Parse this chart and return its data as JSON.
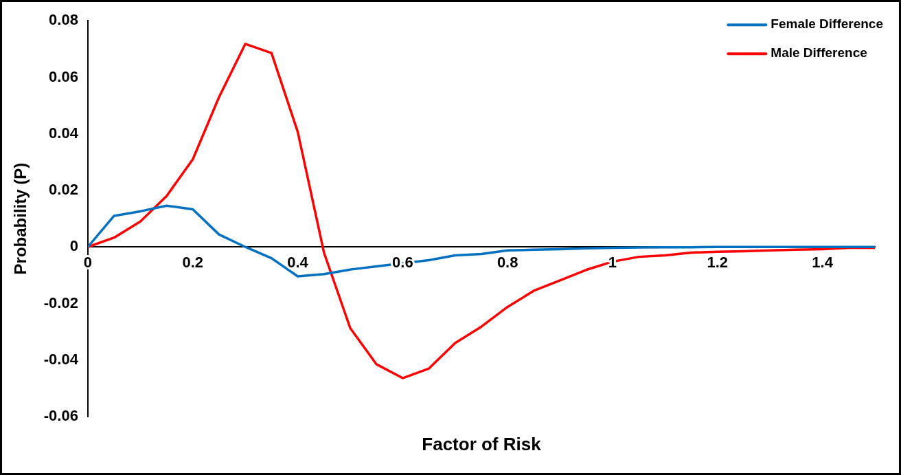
{
  "chart_data": {
    "type": "line",
    "xlabel": "Factor of Risk",
    "ylabel": "Probability (P)",
    "x": [
      0,
      0.05,
      0.1,
      0.15,
      0.2,
      0.25,
      0.3,
      0.35,
      0.4,
      0.45,
      0.5,
      0.55,
      0.6,
      0.65,
      0.7,
      0.75,
      0.8,
      0.85,
      0.9,
      0.95,
      1,
      1.05,
      1.1,
      1.15,
      1.2,
      1.25,
      1.3,
      1.35,
      1.4,
      1.45,
      1.5
    ],
    "series": [
      {
        "name": "Female Difference",
        "color": "#0070c0",
        "values": [
          0,
          0.011,
          0.0126,
          0.0146,
          0.0133,
          0.0044,
          0,
          -0.004,
          -0.0104,
          -0.0096,
          -0.008,
          -0.0069,
          -0.0058,
          -0.0047,
          -0.003,
          -0.0025,
          -0.0012,
          -0.001,
          -0.0008,
          -0.0005,
          -0.0003,
          -0.0002,
          -0.0001,
          -0.0001,
          0,
          0,
          0,
          0,
          0,
          0,
          0
        ]
      },
      {
        "name": "Male Difference",
        "color": "#ff0000",
        "values": [
          0,
          0.0033,
          0.009,
          0.018,
          0.031,
          0.053,
          0.0718,
          0.0686,
          0.0407,
          -0.002,
          -0.0287,
          -0.0415,
          -0.0464,
          -0.043,
          -0.034,
          -0.0282,
          -0.0212,
          -0.0155,
          -0.0118,
          -0.0081,
          -0.0052,
          -0.0035,
          -0.003,
          -0.002,
          -0.0017,
          -0.0015,
          -0.0012,
          -0.001,
          -0.0008,
          -0.0003,
          -0.0003
        ]
      }
    ],
    "xlim": [
      0,
      1.5
    ],
    "xticks": [
      0,
      0.2,
      0.4,
      0.6,
      0.8,
      1,
      1.2,
      1.4
    ],
    "ylim": [
      -0.06,
      0.08
    ],
    "yticks": [
      -0.06,
      -0.04,
      -0.02,
      0,
      0.02,
      0.04,
      0.06,
      0.08
    ],
    "legend": "top right",
    "marker": "none",
    "line_style": "solid"
  }
}
